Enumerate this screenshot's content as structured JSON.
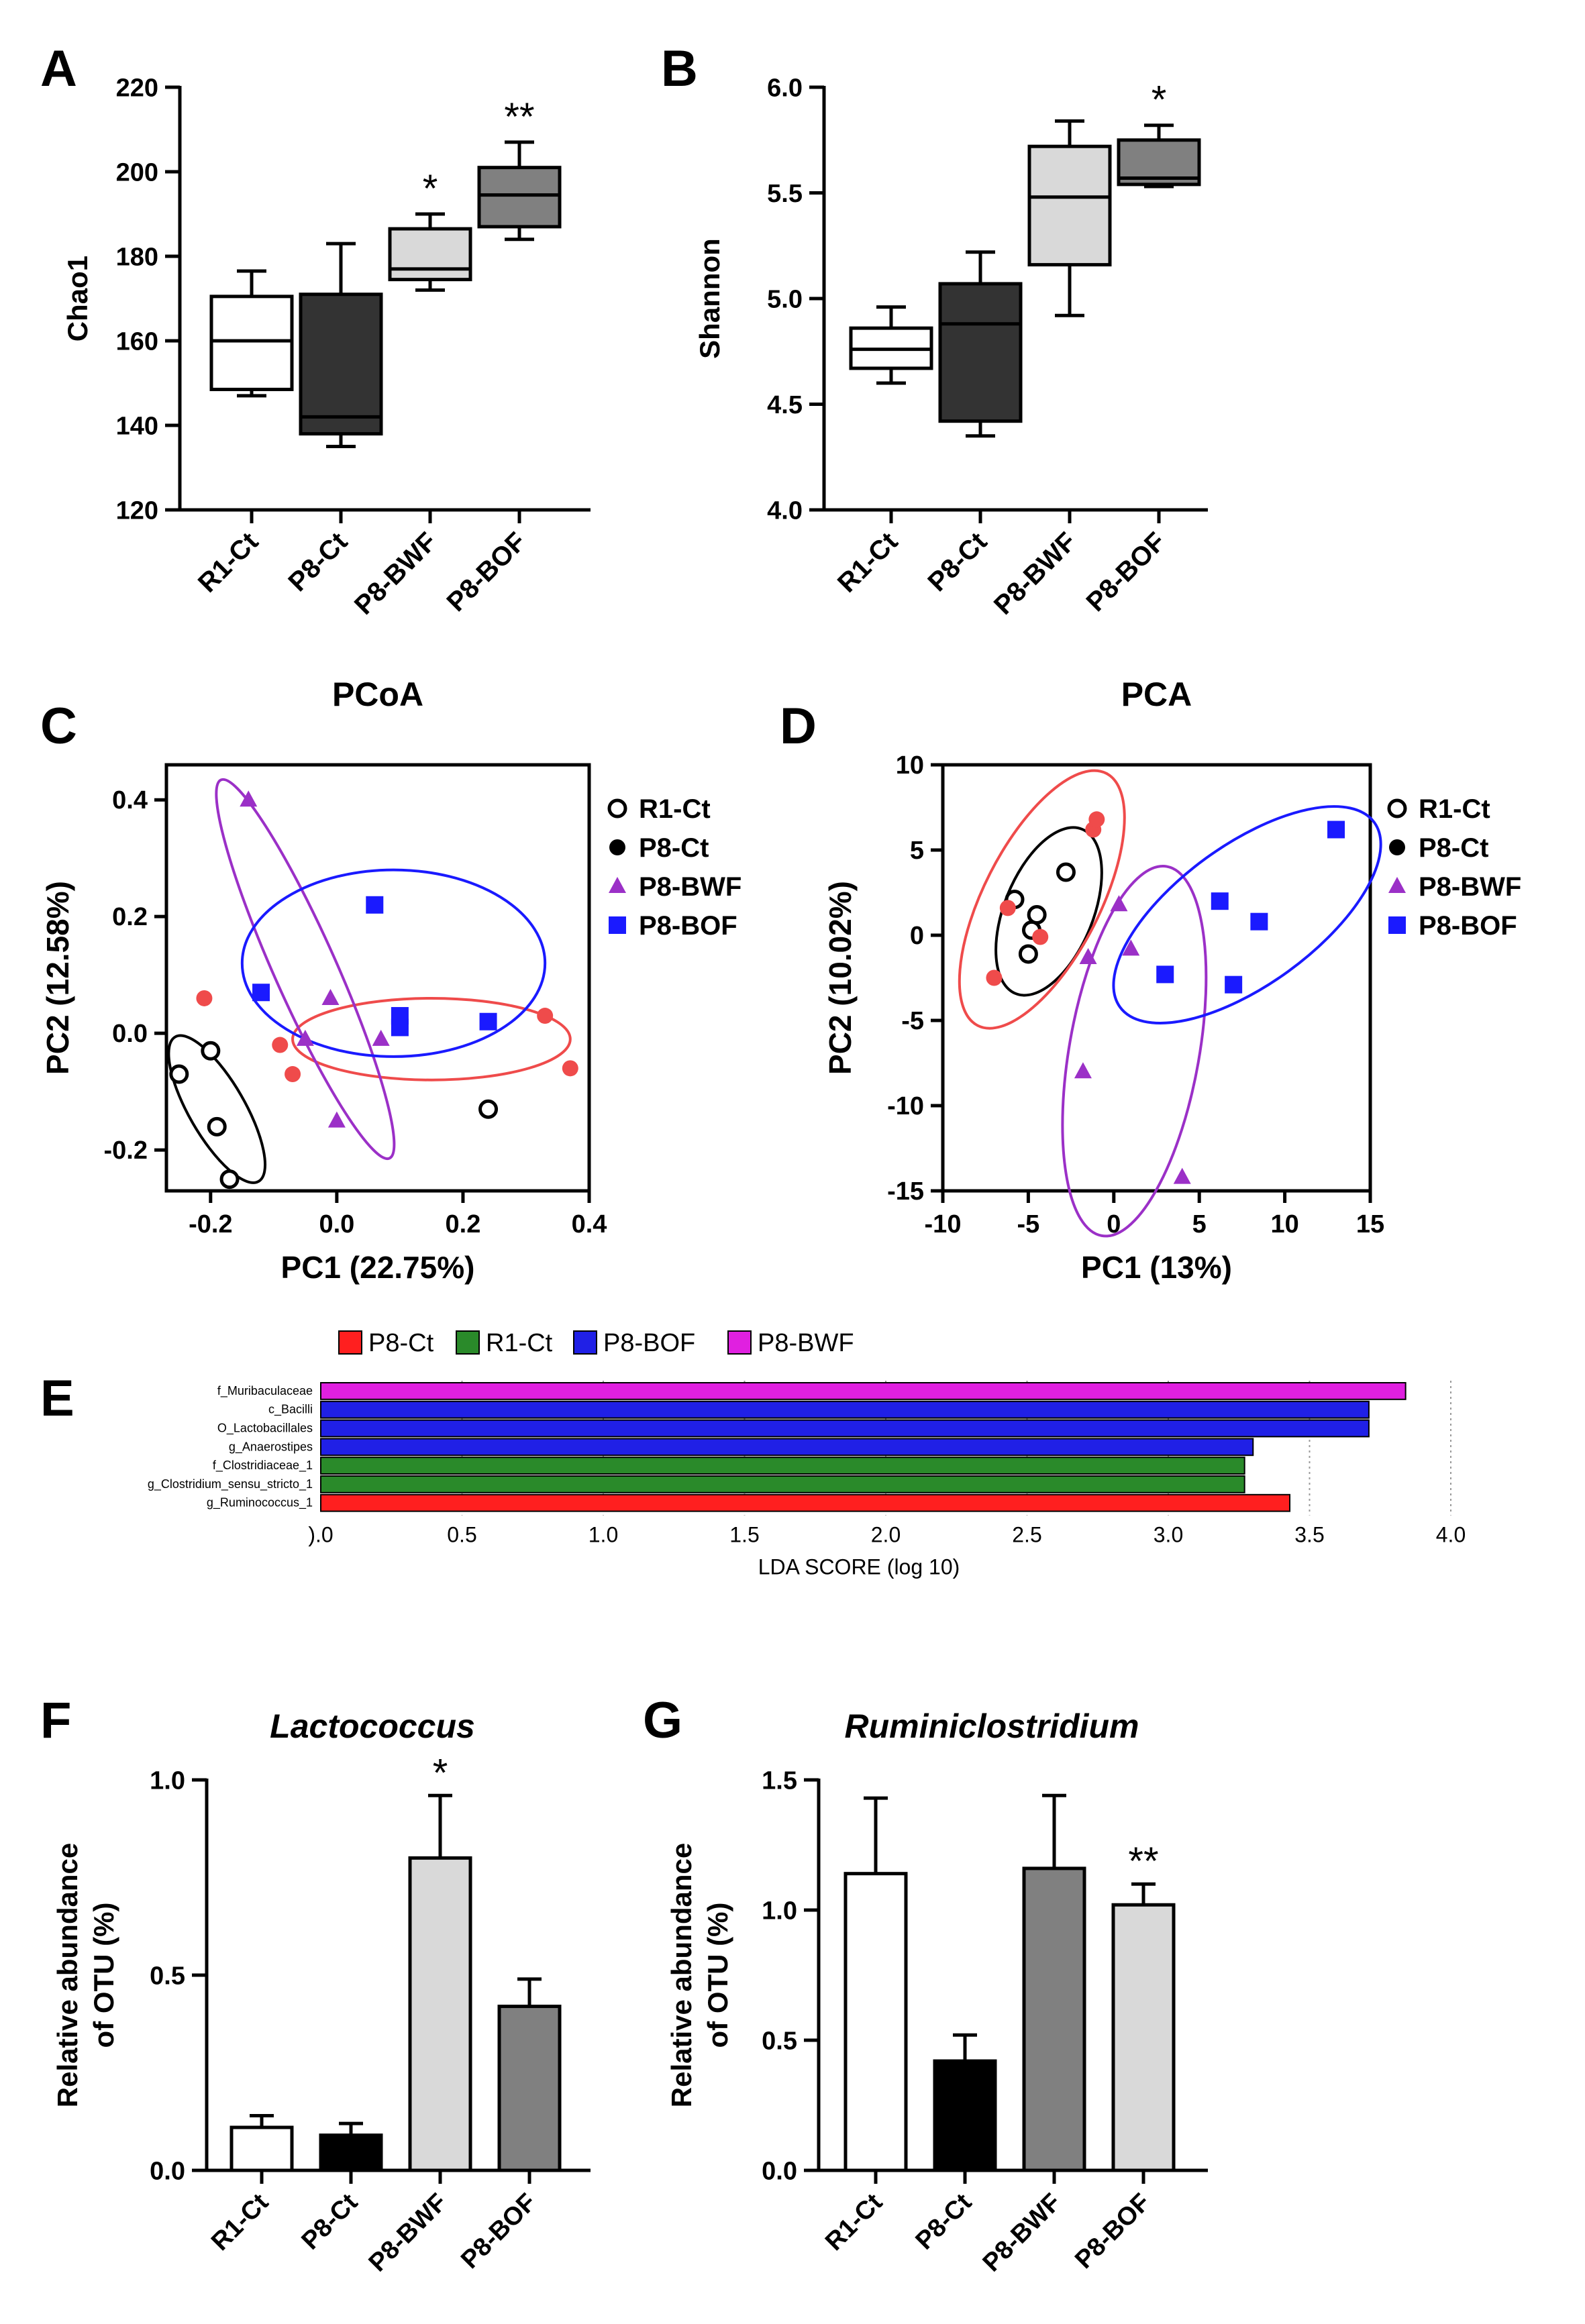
{
  "colors": {
    "black": "#000000",
    "white": "#ffffff",
    "light_grey": "#d9d9d9",
    "mid_grey": "#808080",
    "dark_grey": "#333333",
    "red": "#ef4b4b",
    "purple": "#9b30c7",
    "blue": "#1a1aff",
    "lefse_red": "#ff1f1f",
    "lefse_green": "#2a8a2a",
    "lefse_blue": "#2020e6",
    "lefse_magenta": "#e020e0"
  },
  "chart_data": [
    {
      "id": "A",
      "panel_label": "A",
      "type": "box",
      "title": "",
      "ylabel": "Chao1",
      "ylim": [
        120,
        220
      ],
      "yticks": [
        120,
        140,
        160,
        180,
        200,
        220
      ],
      "categories": [
        "R1-Ct",
        "P8-Ct",
        "P8-BWF",
        "P8-BOF"
      ],
      "boxes": [
        {
          "min": 147,
          "q1": 148.5,
          "median": 160,
          "q3": 170.5,
          "max": 176.5,
          "fill": "#ffffff",
          "sig": ""
        },
        {
          "min": 135,
          "q1": 138,
          "median": 142,
          "q3": 171,
          "max": 183,
          "fill": "#333333",
          "sig": ""
        },
        {
          "min": 172,
          "q1": 174.5,
          "median": 177,
          "q3": 186.5,
          "max": 190,
          "fill": "#d9d9d9",
          "sig": "*"
        },
        {
          "min": 184,
          "q1": 187,
          "median": 194.5,
          "q3": 201,
          "max": 207,
          "fill": "#808080",
          "sig": "**"
        }
      ]
    },
    {
      "id": "B",
      "panel_label": "B",
      "type": "box",
      "title": "",
      "ylabel": "Shannon",
      "ylim": [
        4.0,
        6.0
      ],
      "yticks": [
        "4.0",
        "4.5",
        "5.0",
        "5.5",
        "6.0"
      ],
      "categories": [
        "R1-Ct",
        "P8-Ct",
        "P8-BWF",
        "P8-BOF"
      ],
      "boxes": [
        {
          "min": 4.6,
          "q1": 4.67,
          "median": 4.76,
          "q3": 4.86,
          "max": 4.96,
          "fill": "#ffffff",
          "sig": ""
        },
        {
          "min": 4.35,
          "q1": 4.42,
          "median": 4.88,
          "q3": 5.07,
          "max": 5.22,
          "fill": "#333333",
          "sig": ""
        },
        {
          "min": 4.92,
          "q1": 5.16,
          "median": 5.48,
          "q3": 5.72,
          "max": 5.84,
          "fill": "#d9d9d9",
          "sig": ""
        },
        {
          "min": 5.53,
          "q1": 5.54,
          "median": 5.57,
          "q3": 5.75,
          "max": 5.82,
          "fill": "#808080",
          "sig": "*"
        }
      ]
    },
    {
      "id": "C",
      "panel_label": "C",
      "type": "scatter",
      "title": "PCoA",
      "xlabel": "PC1 (22.75%)",
      "ylabel": "PC2 (12.58%)",
      "xlim": [
        -0.27,
        0.4
      ],
      "ylim": [
        -0.27,
        0.46
      ],
      "xticks": [
        "-0.2",
        "0.0",
        "0.2",
        "0.4"
      ],
      "yticks": [
        "-0.2",
        "0.0",
        "0.2",
        "0.4"
      ],
      "legend": [
        "R1-Ct",
        "P8-Ct",
        "P8-BWF",
        "P8-BOF"
      ],
      "series": [
        {
          "name": "R1-Ct",
          "marker": "circle-open",
          "color": "#000000",
          "points": [
            [
              -0.25,
              -0.07
            ],
            [
              -0.2,
              -0.03
            ],
            [
              -0.19,
              -0.16
            ],
            [
              -0.17,
              -0.25
            ],
            [
              0.24,
              -0.13
            ]
          ]
        },
        {
          "name": "P8-Ct",
          "marker": "circle",
          "color": "#ef4b4b",
          "points": [
            [
              -0.21,
              0.06
            ],
            [
              -0.09,
              -0.02
            ],
            [
              -0.07,
              -0.07
            ],
            [
              0.33,
              0.03
            ],
            [
              0.37,
              -0.06
            ]
          ]
        },
        {
          "name": "P8-BWF",
          "marker": "triangle",
          "color": "#9b30c7",
          "points": [
            [
              -0.14,
              0.4
            ],
            [
              -0.05,
              -0.01
            ],
            [
              -0.01,
              0.06
            ],
            [
              0.0,
              -0.15
            ],
            [
              0.07,
              -0.01
            ]
          ]
        },
        {
          "name": "P8-BOF",
          "marker": "square",
          "color": "#1a1aff",
          "points": [
            [
              -0.12,
              0.07
            ],
            [
              0.06,
              0.22
            ],
            [
              0.1,
              0.03
            ],
            [
              0.1,
              0.01
            ],
            [
              0.24,
              0.02
            ]
          ]
        }
      ],
      "ellipses": [
        {
          "color": "#000000",
          "cx": -0.19,
          "cy": -0.13,
          "rx": 0.14,
          "ry": 0.045,
          "angle": -60
        },
        {
          "color": "#ef4b4b",
          "cx": 0.15,
          "cy": -0.01,
          "rx": 0.22,
          "ry": 0.07,
          "angle": 0
        },
        {
          "color": "#9b30c7",
          "cx": -0.05,
          "cy": 0.11,
          "rx": 0.35,
          "ry": 0.05,
          "angle": -66
        },
        {
          "color": "#1a1aff",
          "cx": 0.09,
          "cy": 0.12,
          "rx": 0.24,
          "ry": 0.16,
          "angle": 0
        }
      ]
    },
    {
      "id": "D",
      "panel_label": "D",
      "type": "scatter",
      "title": "PCA",
      "xlabel": "PC1 (13%)",
      "ylabel": "PC2 (10.02%)",
      "xlim": [
        -10,
        15
      ],
      "ylim": [
        -15,
        10
      ],
      "xticks": [
        "-10",
        "-5",
        "0",
        "5",
        "10",
        "15"
      ],
      "yticks": [
        "-15",
        "-10",
        "-5",
        "0",
        "5",
        "10"
      ],
      "legend": [
        "R1-Ct",
        "P8-Ct",
        "P8-BWF",
        "P8-BOF"
      ],
      "series": [
        {
          "name": "R1-Ct",
          "marker": "circle-open",
          "color": "#000000",
          "points": [
            [
              -5.8,
              2.1
            ],
            [
              -4.5,
              1.2
            ],
            [
              -5.0,
              -1.1
            ],
            [
              -4.8,
              0.3
            ],
            [
              -2.8,
              3.7
            ]
          ]
        },
        {
          "name": "P8-Ct",
          "marker": "circle",
          "color": "#ef4b4b",
          "points": [
            [
              -6.2,
              1.6
            ],
            [
              -7.0,
              -2.5
            ],
            [
              -4.3,
              -0.1
            ],
            [
              -1.2,
              6.2
            ],
            [
              -1.0,
              6.8
            ]
          ]
        },
        {
          "name": "P8-BWF",
          "marker": "triangle",
          "color": "#9b30c7",
          "points": [
            [
              -1.5,
              -1.3
            ],
            [
              0.3,
              1.8
            ],
            [
              1.0,
              -0.8
            ],
            [
              -1.8,
              -8.0
            ],
            [
              4.0,
              -14.2
            ]
          ]
        },
        {
          "name": "P8-BOF",
          "marker": "square",
          "color": "#1a1aff",
          "points": [
            [
              3.0,
              -2.3
            ],
            [
              6.2,
              2.0
            ],
            [
              8.5,
              0.8
            ],
            [
              7.0,
              -2.9
            ],
            [
              13.0,
              6.2
            ]
          ]
        }
      ],
      "ellipses": [
        {
          "color": "#000000",
          "cx": -3.8,
          "cy": 1.4,
          "rx": 5.2,
          "ry": 2.6,
          "angle": 68
        },
        {
          "color": "#ef4b4b",
          "cx": -4.2,
          "cy": 2.1,
          "rx": 8.3,
          "ry": 3.4,
          "angle": 63
        },
        {
          "color": "#9b30c7",
          "cx": 1.2,
          "cy": -6.8,
          "rx": 11.0,
          "ry": 3.8,
          "angle": 80
        },
        {
          "color": "#1a1aff",
          "cx": 7.8,
          "cy": 1.2,
          "rx": 9.2,
          "ry": 4.1,
          "angle": 36
        }
      ]
    },
    {
      "id": "E",
      "panel_label": "E",
      "type": "bar",
      "orientation": "horizontal",
      "title": "",
      "xlabel": "LDA SCORE (log 10)",
      "xlim": [
        0,
        4.0
      ],
      "xticks": [
        ").0",
        "0.5",
        "1.0",
        "1.5",
        "2.0",
        "2.5",
        "3.0",
        "3.5",
        "4.0"
      ],
      "legend": [
        {
          "label": "P8-Ct",
          "color": "#ff1f1f"
        },
        {
          "label": "R1-Ct",
          "color": "#2a8a2a"
        },
        {
          "label": "P8-BOF",
          "color": "#2020e6"
        },
        {
          "label": "P8-BWF",
          "color": "#e020e0"
        }
      ],
      "bars": [
        {
          "label": "f_Muribaculaceae",
          "value": 3.84,
          "group": "P8-BWF",
          "color": "#e020e0"
        },
        {
          "label": "c_Bacilli",
          "value": 3.71,
          "group": "P8-BOF",
          "color": "#2020e6"
        },
        {
          "label": "O_Lactobacillales",
          "value": 3.71,
          "group": "P8-BOF",
          "color": "#2020e6"
        },
        {
          "label": "g_Anaerostipes",
          "value": 3.3,
          "group": "P8-BOF",
          "color": "#2020e6"
        },
        {
          "label": "f_Clostridiaceae_1",
          "value": 3.27,
          "group": "R1-Ct",
          "color": "#2a8a2a"
        },
        {
          "label": "g_Clostridium_sensu_stricto_1",
          "value": 3.27,
          "group": "R1-Ct",
          "color": "#2a8a2a"
        },
        {
          "label": "g_Ruminococcus_1",
          "value": 3.43,
          "group": "P8-Ct",
          "color": "#ff1f1f"
        }
      ]
    },
    {
      "id": "F",
      "panel_label": "F",
      "type": "bar",
      "title": "Lactococcus",
      "ylabel_lines": [
        "Relative abundance",
        "of OTU (%)"
      ],
      "ylim": [
        0,
        1.0
      ],
      "yticks": [
        "0.0",
        "0.5",
        "1.0"
      ],
      "categories": [
        "R1-Ct",
        "P8-Ct",
        "P8-BWF",
        "P8-BOF"
      ],
      "values": [
        0.11,
        0.09,
        0.8,
        0.42
      ],
      "errors": [
        0.03,
        0.03,
        0.16,
        0.07
      ],
      "fills": [
        "#ffffff",
        "#000000",
        "#d9d9d9",
        "#808080"
      ],
      "sig": [
        "",
        "",
        "*",
        ""
      ]
    },
    {
      "id": "G",
      "panel_label": "G",
      "type": "bar",
      "title": "Ruminiclostridium",
      "ylabel_lines": [
        "Relative abundance",
        "of OTU (%)"
      ],
      "ylim": [
        0,
        1.5
      ],
      "yticks": [
        "0.0",
        "0.5",
        "1.0",
        "1.5"
      ],
      "categories": [
        "R1-Ct",
        "P8-Ct",
        "P8-BWF",
        "P8-BOF"
      ],
      "values": [
        1.14,
        0.42,
        1.16,
        1.02
      ],
      "errors": [
        0.29,
        0.1,
        0.28,
        0.08
      ],
      "fills": [
        "#ffffff",
        "#000000",
        "#808080",
        "#d9d9d9"
      ],
      "sig": [
        "",
        "",
        "",
        "**"
      ]
    }
  ]
}
